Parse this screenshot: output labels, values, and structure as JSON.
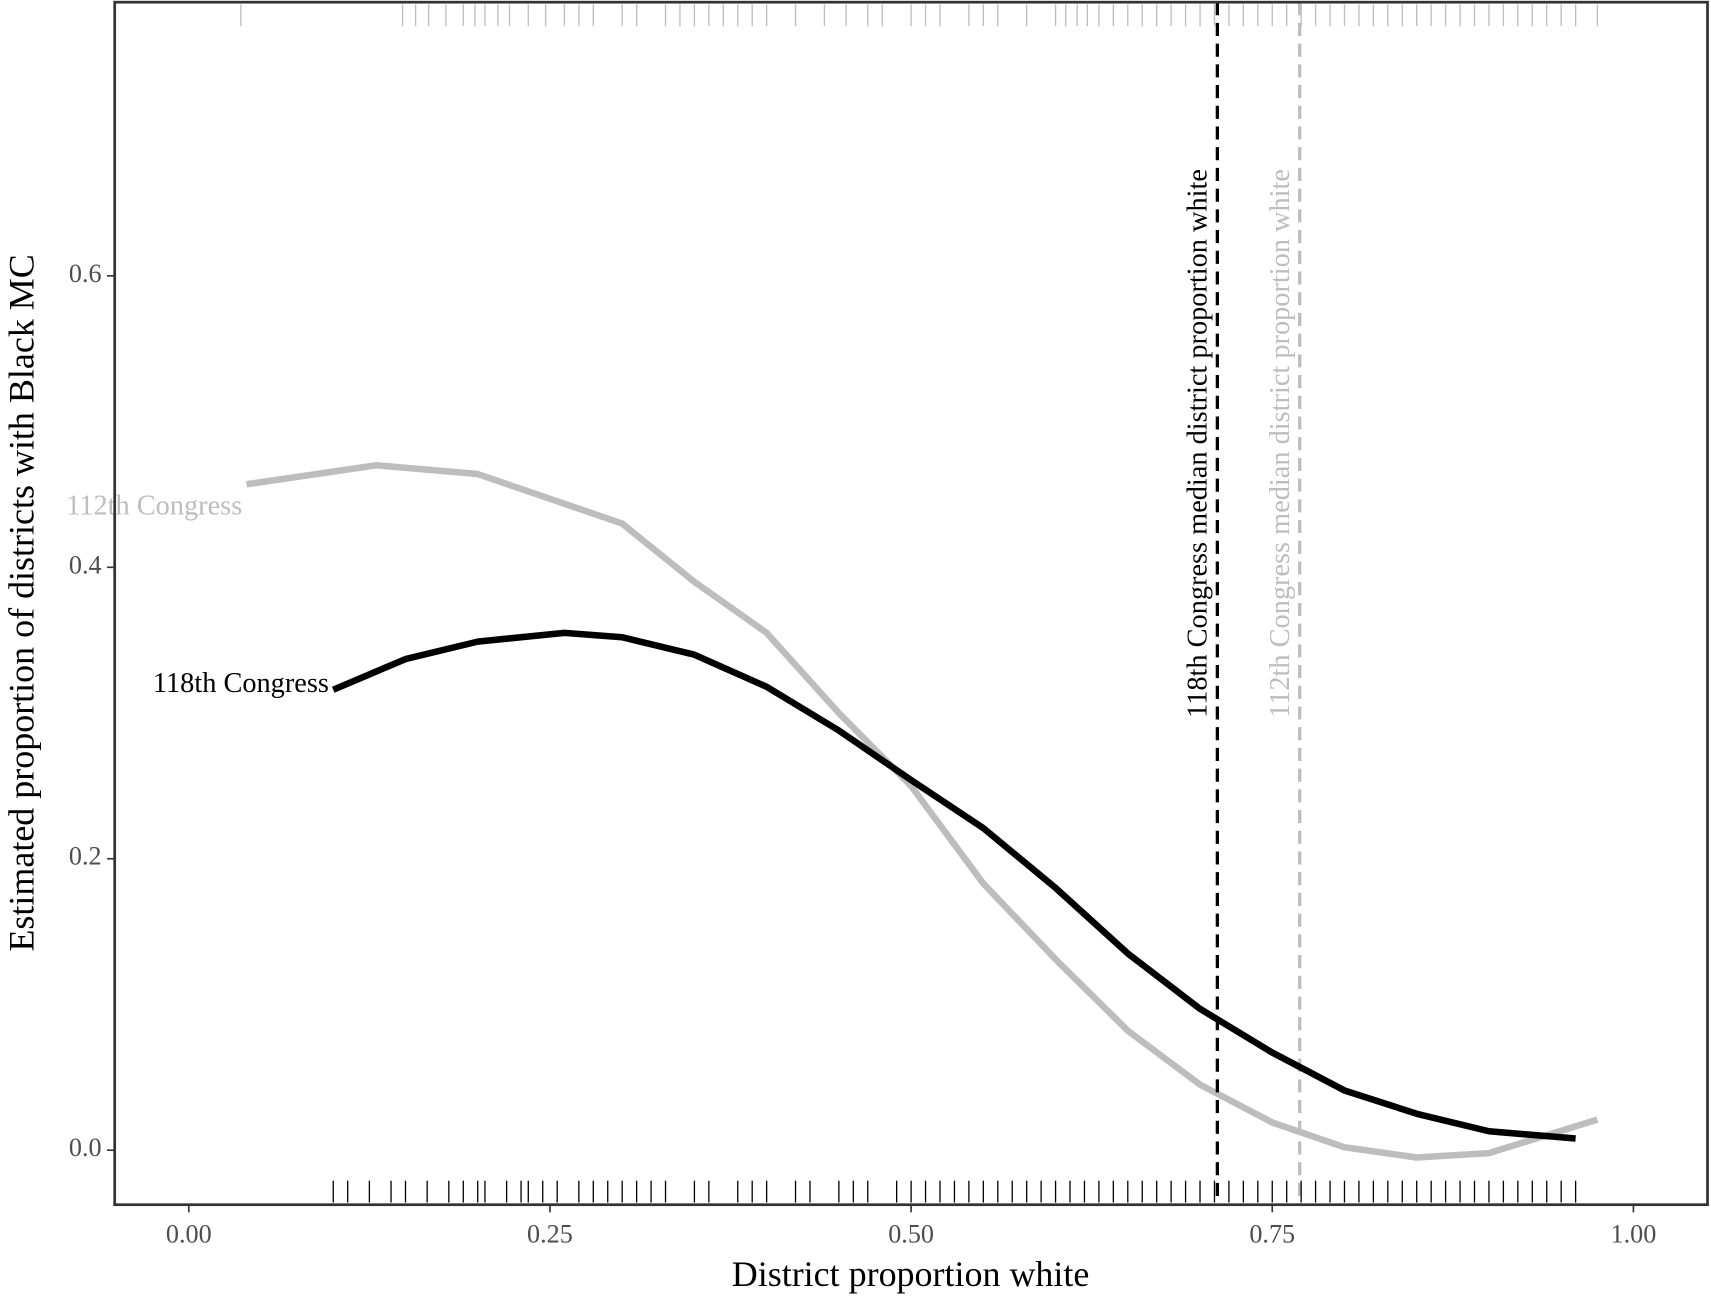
{
  "chart_data": {
    "type": "line",
    "x_label": "District proportion white",
    "y_label": "Estimated proportion of districts with Black MC",
    "xlim": [
      -0.0513,
      1.0513
    ],
    "ylim": [
      -0.0374,
      0.7878
    ],
    "xticks": [
      {
        "value": 0,
        "label": "0.00"
      },
      {
        "value": 0.25,
        "label": "0.25"
      },
      {
        "value": 0.5,
        "label": "0.50"
      },
      {
        "value": 0.75,
        "label": "0.75"
      },
      {
        "value": 1,
        "label": "1.00"
      }
    ],
    "yticks": [
      {
        "value": 0,
        "label": "0.0"
      },
      {
        "value": 0.2,
        "label": "0.2"
      },
      {
        "value": 0.4,
        "label": "0.4"
      },
      {
        "value": 0.6,
        "label": "0.6"
      }
    ],
    "series": [
      {
        "name": "112th Congress",
        "color": "#bdbdbd",
        "rug_side": "top",
        "x": [
          0.04,
          0.13,
          0.2,
          0.25,
          0.3,
          0.35,
          0.4,
          0.45,
          0.5,
          0.55,
          0.6,
          0.65,
          0.7,
          0.75,
          0.8,
          0.85,
          0.9,
          0.975
        ],
        "values": [
          0.457,
          0.47,
          0.464,
          0.447,
          0.43,
          0.39,
          0.355,
          0.3,
          0.25,
          0.183,
          0.131,
          0.082,
          0.045,
          0.019,
          0.002,
          -0.005,
          -0.002,
          0.021
        ],
        "median": 0.769,
        "median_label": "112th Congress median district proportion white",
        "rug": [
          0.036,
          0.148,
          0.157,
          0.166,
          0.178,
          0.19,
          0.198,
          0.205,
          0.214,
          0.222,
          0.235,
          0.247,
          0.26,
          0.27,
          0.28,
          0.3,
          0.31,
          0.33,
          0.34,
          0.35,
          0.36,
          0.37,
          0.38,
          0.39,
          0.4,
          0.42,
          0.44,
          0.455,
          0.47,
          0.48,
          0.5,
          0.51,
          0.52,
          0.54,
          0.55,
          0.56,
          0.58,
          0.6,
          0.607,
          0.615,
          0.622,
          0.63,
          0.64,
          0.65,
          0.66,
          0.67,
          0.68,
          0.69,
          0.7,
          0.71,
          0.72,
          0.73,
          0.74,
          0.75,
          0.76,
          0.77,
          0.78,
          0.79,
          0.8,
          0.81,
          0.82,
          0.83,
          0.84,
          0.85,
          0.86,
          0.87,
          0.88,
          0.89,
          0.9,
          0.91,
          0.92,
          0.93,
          0.94,
          0.95,
          0.96,
          0.975
        ]
      },
      {
        "name": "118th Congress",
        "color": "#000000",
        "rug_side": "bottom",
        "x": [
          0.1,
          0.15,
          0.2,
          0.26,
          0.3,
          0.35,
          0.4,
          0.45,
          0.5,
          0.55,
          0.6,
          0.65,
          0.7,
          0.75,
          0.8,
          0.85,
          0.9,
          0.96
        ],
        "values": [
          0.316,
          0.337,
          0.349,
          0.355,
          0.352,
          0.34,
          0.318,
          0.288,
          0.254,
          0.221,
          0.18,
          0.135,
          0.097,
          0.067,
          0.041,
          0.025,
          0.013,
          0.008
        ],
        "median": 0.712,
        "median_label": "118th Congress median district proportion white",
        "rug": [
          0.1,
          0.11,
          0.125,
          0.14,
          0.15,
          0.165,
          0.18,
          0.19,
          0.2,
          0.205,
          0.22,
          0.23,
          0.235,
          0.245,
          0.255,
          0.27,
          0.28,
          0.29,
          0.3,
          0.31,
          0.32,
          0.33,
          0.35,
          0.36,
          0.38,
          0.39,
          0.4,
          0.42,
          0.43,
          0.45,
          0.46,
          0.47,
          0.49,
          0.5,
          0.51,
          0.52,
          0.53,
          0.54,
          0.55,
          0.56,
          0.57,
          0.58,
          0.59,
          0.6,
          0.61,
          0.62,
          0.63,
          0.64,
          0.65,
          0.66,
          0.67,
          0.68,
          0.69,
          0.7,
          0.71,
          0.72,
          0.73,
          0.74,
          0.75,
          0.76,
          0.77,
          0.78,
          0.79,
          0.8,
          0.81,
          0.82,
          0.83,
          0.84,
          0.85,
          0.86,
          0.87,
          0.88,
          0.89,
          0.9,
          0.91,
          0.92,
          0.93,
          0.94,
          0.95,
          0.96
        ]
      }
    ]
  }
}
